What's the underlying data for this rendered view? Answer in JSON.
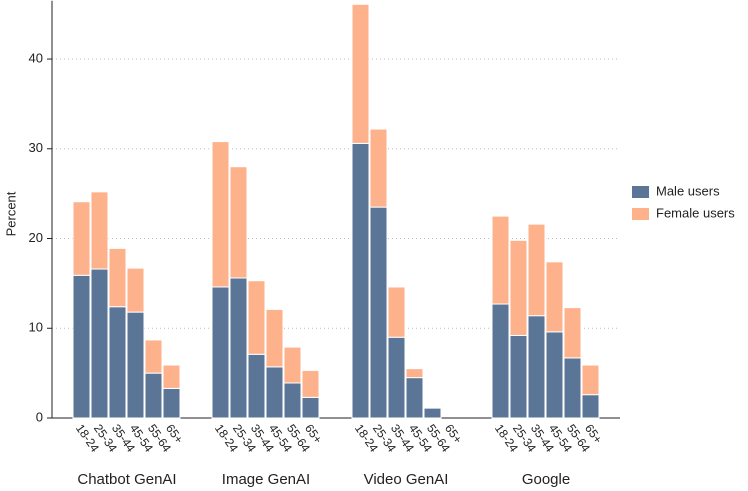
{
  "chart_data": {
    "type": "bar",
    "stacked": true,
    "ylabel": "Percent",
    "groups": [
      "Chatbot GenAI",
      "Image GenAI",
      "Video GenAI",
      "Google"
    ],
    "categories": [
      "18-24",
      "25-34",
      "35-44",
      "45-54",
      "55-64",
      "65+"
    ],
    "series": [
      {
        "name": "Male users",
        "color": "#5b7597",
        "values": [
          [
            15.9,
            16.6,
            12.4,
            11.8,
            5.0,
            3.3
          ],
          [
            14.6,
            15.6,
            7.1,
            5.7,
            3.9,
            2.3
          ],
          [
            30.6,
            23.5,
            9.0,
            4.5,
            1.1,
            0
          ],
          [
            12.7,
            9.2,
            11.4,
            9.6,
            6.7,
            2.6
          ]
        ]
      },
      {
        "name": "Female users",
        "color": "#fdb28c",
        "values": [
          [
            8.2,
            8.6,
            6.5,
            4.9,
            3.7,
            2.6
          ],
          [
            16.2,
            12.4,
            8.2,
            6.4,
            4.0,
            3.0
          ],
          [
            15.5,
            8.7,
            5.6,
            1.0,
            0,
            0
          ],
          [
            9.8,
            10.6,
            10.2,
            7.8,
            5.6,
            3.3
          ]
        ]
      }
    ],
    "ylim": [
      0,
      46.5
    ],
    "yticks": [
      0,
      10,
      20,
      30,
      40
    ],
    "grid": true
  }
}
